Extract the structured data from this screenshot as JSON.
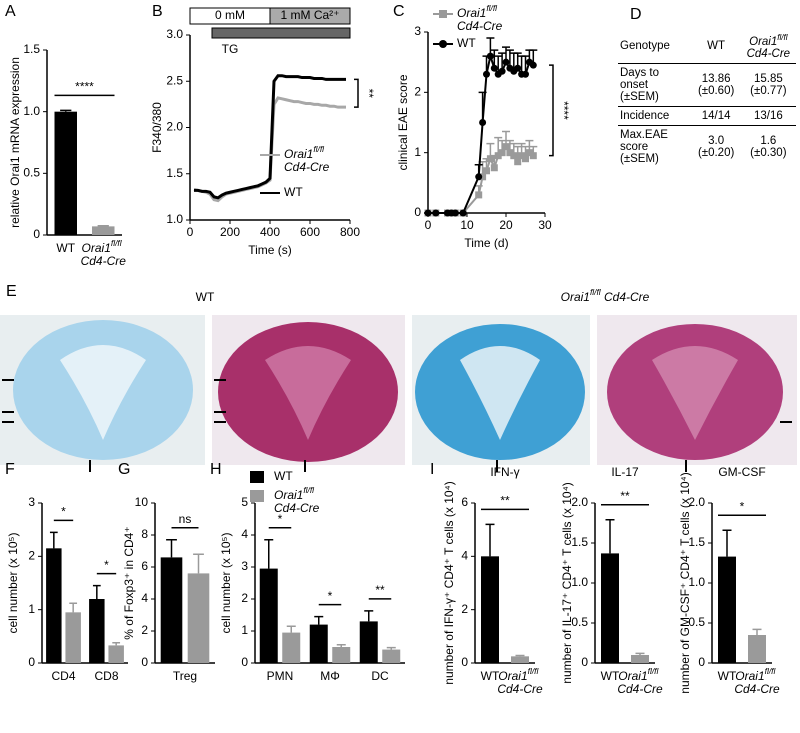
{
  "chart_data": [
    {
      "type": "bar",
      "panel": "A",
      "ylabel": "relative Orai1 mRNA expression",
      "categories": [
        "WT",
        "Orai1fl/fl Cd4-Cre"
      ],
      "values": [
        1.0,
        0.07
      ],
      "errors": [
        0.01,
        0.005
      ],
      "colors": [
        "#000000",
        "#9a9a9a"
      ],
      "ylim": [
        0,
        1.5
      ],
      "yticks": [
        0,
        0.5,
        {
          "value": 1,
          "label": "1.0"
        },
        1.5
      ],
      "significance": "****"
    },
    {
      "type": "line",
      "panel": "B",
      "xlabel": "Time (s)",
      "ylabel": "F340/380",
      "stimulus_labels": [
        "0 mM",
        "1 mM Ca²⁺",
        "TG"
      ],
      "xlim": [
        0,
        800
      ],
      "xticks": [
        0,
        200,
        400,
        600,
        800
      ],
      "ylim": [
        1,
        3
      ],
      "yticks": [
        {
          "value": 1,
          "label": "1.0"
        },
        1.5,
        {
          "value": 2,
          "label": "2.0"
        },
        2.5,
        {
          "value": 3,
          "label": "3.0"
        }
      ],
      "legend": "lower right",
      "significance": "**",
      "x": [
        20,
        40,
        60,
        80,
        100,
        120,
        140,
        160,
        180,
        200,
        220,
        240,
        260,
        280,
        300,
        320,
        340,
        360,
        380,
        400,
        420,
        440,
        460,
        480,
        500,
        520,
        540,
        560,
        580,
        600,
        620,
        640,
        660,
        680,
        700,
        720,
        740,
        760,
        780
      ],
      "series": [
        {
          "name": "Orai1fl/fl Cd4-Cre",
          "color": "#a8a8a8",
          "values": [
            1.33,
            1.32,
            1.31,
            1.3,
            1.28,
            1.22,
            1.21,
            1.25,
            1.28,
            1.29,
            1.3,
            1.31,
            1.32,
            1.33,
            1.34,
            1.35,
            1.36,
            1.38,
            1.4,
            1.43,
            2.25,
            2.32,
            2.31,
            2.3,
            2.29,
            2.28,
            2.28,
            2.27,
            2.26,
            2.26,
            2.25,
            2.25,
            2.24,
            2.24,
            2.23,
            2.23,
            2.22,
            2.22,
            2.22
          ]
        },
        {
          "name": "WT",
          "color": "#000000",
          "values": [
            1.32,
            1.32,
            1.31,
            1.31,
            1.3,
            1.25,
            1.24,
            1.27,
            1.29,
            1.3,
            1.31,
            1.32,
            1.33,
            1.34,
            1.35,
            1.36,
            1.37,
            1.39,
            1.41,
            1.45,
            2.5,
            2.56,
            2.56,
            2.55,
            2.55,
            2.55,
            2.55,
            2.54,
            2.54,
            2.54,
            2.53,
            2.53,
            2.53,
            2.52,
            2.52,
            2.52,
            2.52,
            2.52,
            2.52
          ]
        }
      ]
    },
    {
      "type": "line",
      "panel": "C",
      "xlabel": "Time (d)",
      "ylabel": "clinical EAE score",
      "xlim": [
        0,
        30
      ],
      "xticks": [
        0,
        10,
        20,
        30
      ],
      "ylim": [
        0,
        3
      ],
      "yticks": [
        0,
        1,
        2,
        3
      ],
      "legend": "upper left",
      "significance": "****",
      "x": [
        0,
        2,
        5,
        6,
        7,
        9,
        13,
        14,
        15,
        16,
        17,
        18,
        19,
        20,
        21,
        22,
        23,
        24,
        25,
        26,
        27
      ],
      "series": [
        {
          "name": "Orai1fl/fl Cd4-Cre",
          "color": "#9a9a9a",
          "marker": "square",
          "values": [
            0,
            0,
            0,
            0,
            0,
            0,
            0.3,
            0.6,
            0.7,
            0.9,
            0.75,
            0.95,
            1.0,
            1.1,
            1.0,
            0.95,
            0.85,
            0.95,
            0.9,
            1.0,
            0.95
          ],
          "errors": [
            0,
            0,
            0,
            0,
            0,
            0,
            0.15,
            0.25,
            0.2,
            0.25,
            0.2,
            0.3,
            0.2,
            0.25,
            0.2,
            0.2,
            0.25,
            0.2,
            0.2,
            0.2,
            0.15
          ]
        },
        {
          "name": "WT",
          "color": "#000000",
          "marker": "circle",
          "values": [
            0,
            0,
            0,
            0,
            0,
            0,
            0.6,
            1.5,
            2.3,
            2.6,
            2.4,
            2.3,
            2.35,
            2.5,
            2.4,
            2.35,
            2.4,
            2.3,
            2.3,
            2.5,
            2.45
          ],
          "errors": [
            0,
            0,
            0,
            0,
            0,
            0,
            0.2,
            0.5,
            0.3,
            0.3,
            0.3,
            0.3,
            0.3,
            0.25,
            0.3,
            0.3,
            0.25,
            0.3,
            0.3,
            0.2,
            0.25
          ]
        }
      ]
    },
    {
      "type": "bar",
      "panel": "F",
      "ylabel": "cell number (x 10⁵)",
      "categories": [
        "CD4",
        "CD8"
      ],
      "ylim": [
        0,
        3
      ],
      "yticks": [
        0,
        1,
        2,
        3
      ],
      "significance": [
        "*",
        "*"
      ],
      "series": [
        {
          "color": "#000000",
          "values": [
            2.15,
            1.2
          ],
          "errors": [
            0.3,
            0.25
          ]
        },
        {
          "color": "#9a9a9a",
          "values": [
            0.95,
            0.33
          ],
          "errors": [
            0.17,
            0.05
          ]
        }
      ]
    },
    {
      "type": "bar",
      "panel": "G",
      "ylabel": "% of Foxp3⁺ in CD4⁺",
      "categories": [
        "Treg"
      ],
      "ylim": [
        0,
        10
      ],
      "yticks": [
        0,
        2,
        4,
        6,
        8,
        10
      ],
      "significance": [
        "ns"
      ],
      "series": [
        {
          "color": "#000000",
          "values": [
            6.6
          ],
          "errors": [
            1.1
          ]
        },
        {
          "color": "#9a9a9a",
          "values": [
            5.6
          ],
          "errors": [
            1.2
          ]
        }
      ]
    },
    {
      "type": "bar",
      "panel": "H",
      "ylabel": "cell number (x 10⁵)",
      "categories": [
        "PMN",
        "MΦ",
        "DC"
      ],
      "ylim": [
        0,
        5
      ],
      "yticks": [
        0,
        1,
        2,
        3,
        4,
        5
      ],
      "legend": "top",
      "significance": [
        "*",
        "*",
        "**"
      ],
      "series": [
        {
          "name": "WT",
          "color": "#000000",
          "values": [
            2.95,
            1.2,
            1.3
          ],
          "errors": [
            0.9,
            0.25,
            0.33
          ]
        },
        {
          "name": "Orai1fl/fl Cd4-Cre",
          "color": "#9a9a9a",
          "values": [
            0.95,
            0.5,
            0.42
          ],
          "errors": [
            0.2,
            0.07,
            0.06
          ]
        }
      ]
    },
    {
      "type": "bar",
      "panel": "I",
      "title": "IFN-γ",
      "ylabel": "number of IFN-γ⁺ CD4⁺ T cells (x 10⁴)",
      "categories": [
        "WT",
        "Orai1fl/fl Cd4-Cre"
      ],
      "values": [
        4.0,
        0.25
      ],
      "errors": [
        1.2,
        0.03
      ],
      "colors": [
        "#000000",
        "#9a9a9a"
      ],
      "ylim": [
        0,
        6
      ],
      "yticks": [
        0,
        2,
        4,
        6
      ],
      "significance": "**"
    },
    {
      "type": "bar",
      "title": "IL-17",
      "ylabel": "number of IL-17⁺ CD4⁺ T cells (x 10⁴)",
      "categories": [
        "WT",
        "Orai1fl/fl Cd4-Cre"
      ],
      "values": [
        1.37,
        0.1
      ],
      "errors": [
        0.42,
        0.02
      ],
      "colors": [
        "#000000",
        "#9a9a9a"
      ],
      "ylim": [
        0,
        2
      ],
      "yticks": [
        0,
        0.5,
        {
          "value": 1,
          "label": "1.0"
        },
        1.5,
        {
          "value": 2,
          "label": "2.0"
        }
      ],
      "significance": "**"
    },
    {
      "type": "bar",
      "title": "GM-CSF",
      "ylabel": "number of GM-CSF⁺ CD4⁺ T cells (x 10⁴)",
      "categories": [
        "WT",
        "Orai1fl/fl Cd4-Cre"
      ],
      "values": [
        1.33,
        0.35
      ],
      "errors": [
        0.33,
        0.07
      ],
      "colors": [
        "#000000",
        "#9a9a9a"
      ],
      "ylim": [
        0,
        2
      ],
      "yticks": [
        0,
        0.5,
        {
          "value": 1,
          "label": "1.0"
        },
        1.5,
        {
          "value": 2,
          "label": "2.0"
        }
      ],
      "significance": "*"
    }
  ],
  "table": {
    "panel": "D",
    "header": [
      "Genotype",
      "WT",
      "Orai1fl/fl Cd4-Cre"
    ],
    "rows": [
      [
        "Days to onset (±SEM)",
        "13.86 (±0.60)",
        "15.85 (±0.77)"
      ],
      [
        "Incidence",
        "14/14",
        "13/16"
      ],
      [
        "Max.EAE score (±SEM)",
        "3.0 (±0.20)",
        "1.6 (±0.30)"
      ]
    ]
  },
  "histology": {
    "panel": "E",
    "groups": [
      "WT",
      "Orai1fl/fl Cd4-Cre"
    ]
  }
}
